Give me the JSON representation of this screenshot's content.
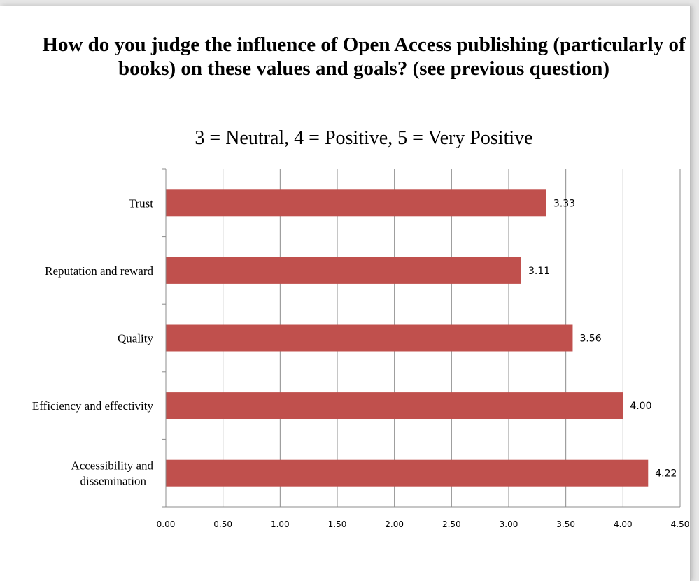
{
  "chart_data": {
    "type": "bar",
    "orientation": "horizontal",
    "title": "How do you judge the influence of Open Access publishing (particularly of books) on these values and goals? (see previous question)",
    "subtitle": "3 = Neutral, 4 = Positive, 5 = Very Positive",
    "categories": [
      "Trust",
      "Reputation and reward",
      "Quality",
      "Efficiency and effectivity",
      "Accessibility and dissemination"
    ],
    "category_lines": [
      [
        "Trust"
      ],
      [
        "Reputation and reward"
      ],
      [
        "Quality"
      ],
      [
        "Efficiency and effectivity"
      ],
      [
        "Accessibility and",
        "dissemination"
      ]
    ],
    "values": [
      3.33,
      3.11,
      3.56,
      4.0,
      4.22
    ],
    "value_labels": [
      "3.33",
      "3.11",
      "3.56",
      "4.00",
      "4.22"
    ],
    "xlim": [
      0,
      4.5
    ],
    "xticks": [
      0,
      0.5,
      1.0,
      1.5,
      2.0,
      2.5,
      3.0,
      3.5,
      4.0,
      4.5
    ],
    "xtick_labels": [
      "0.00",
      "0.50",
      "1.00",
      "1.50",
      "2.00",
      "2.50",
      "3.00",
      "3.50",
      "4.00",
      "4.50"
    ],
    "grid": "vertical",
    "legend": "none",
    "bar_color": "#c0504d",
    "grid_color": "#8c8c8c"
  }
}
